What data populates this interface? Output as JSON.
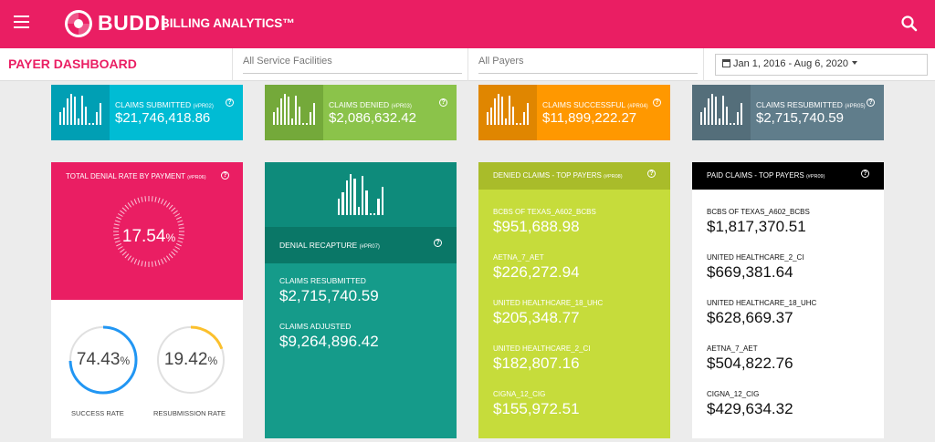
{
  "header": {
    "brand": "BUDDI",
    "subtitle": "BILLING ANALYTICS™"
  },
  "filters": {
    "page_title": "PAYER DASHBOARD",
    "facilities": "All Service Facilities",
    "payers": "All Payers",
    "date_range": "Jan 1, 2016 - Aug 6, 2020"
  },
  "stats": [
    {
      "label": "CLAIMS SUBMITTED",
      "code": "(#PR02)",
      "value": "$21,746,418.86",
      "color": "#00bcd4",
      "icon_color": "#009fb4"
    },
    {
      "label": "CLAIMS DENIED",
      "code": "(#PR03)",
      "value": "$2,086,632.42",
      "color": "#8bc34a",
      "icon_color": "#74a93a"
    },
    {
      "label": "CLAIMS SUCCESSFUL",
      "code": "(#PR04)",
      "value": "$11,899,222.27",
      "color": "#ff9800",
      "icon_color": "#e08600"
    },
    {
      "label": "CLAIMS RESUBMITTED",
      "code": "(#PR05)",
      "value": "$2,715,740.59",
      "color": "#607d8b",
      "icon_color": "#546e7a"
    }
  ],
  "denial_rate": {
    "title": "TOTAL DENIAL RATE BY PAYMENT",
    "code": "(#PR06)",
    "value": "17.54",
    "unit": "%",
    "success_value": "74.43",
    "success_unit": "%",
    "success_label": "SUCCESS RATE",
    "success_fraction": 0.7443,
    "resub_value": "19.42",
    "resub_unit": "%",
    "resub_label": "RESUBMISSION RATE",
    "resub_fraction": 0.1942
  },
  "recapture": {
    "title": "DENIAL RECAPTURE",
    "code": "(#PR07)",
    "resubmitted_label": "CLAIMS RESUBMITTED",
    "resubmitted_value": "$2,715,740.59",
    "adjusted_label": "CLAIMS ADJUSTED",
    "adjusted_value": "$9,264,896.42"
  },
  "denied_payers": {
    "title": "DENIED CLAIMS - TOP PAYERS",
    "code": "(#PR08)",
    "items": [
      {
        "name": "BCBS OF TEXAS_A602_BCBS",
        "amount": "$951,688.98"
      },
      {
        "name": "AETNA_7_AET",
        "amount": "$226,272.94"
      },
      {
        "name": "UNITED HEALTHCARE_18_UHC",
        "amount": "$205,348.77"
      },
      {
        "name": "UNITED HEALTHCARE_2_CI",
        "amount": "$182,807.16"
      },
      {
        "name": "CIGNA_12_CIG",
        "amount": "$155,972.51"
      }
    ]
  },
  "paid_payers": {
    "title": "PAID CLAIMS - TOP PAYERS",
    "code": "(#PR09)",
    "items": [
      {
        "name": "BCBS OF TEXAS_A602_BCBS",
        "amount": "$1,817,370.51"
      },
      {
        "name": "UNITED HEALTHCARE_2_CI",
        "amount": "$669,381.64"
      },
      {
        "name": "UNITED HEALTHCARE_18_UHC",
        "amount": "$628,669.37"
      },
      {
        "name": "AETNA_7_AET",
        "amount": "$504,822.76"
      },
      {
        "name": "CIGNA_12_CIG",
        "amount": "$429,634.32"
      }
    ]
  }
}
